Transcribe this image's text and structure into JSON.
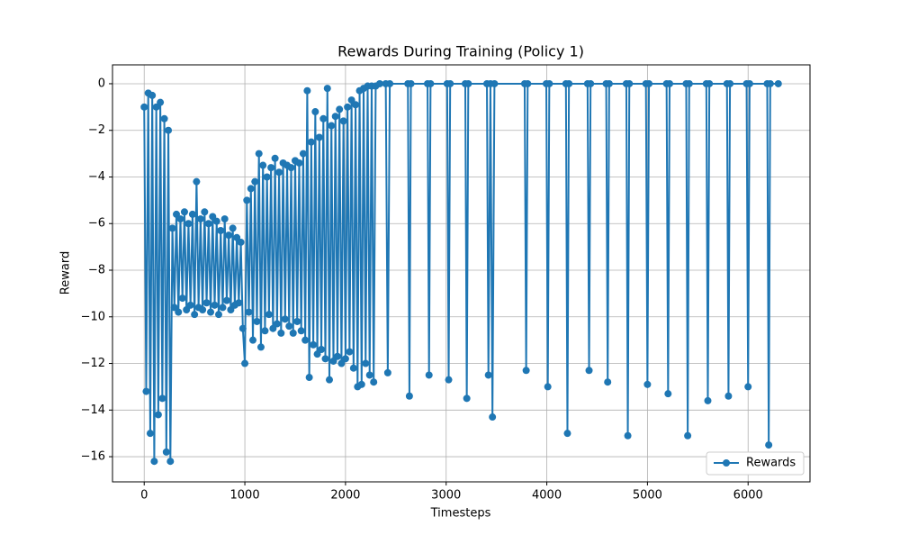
{
  "chart_data": {
    "type": "line",
    "title": "Rewards During Training (Policy 1)",
    "x_label": "Timesteps",
    "y_label": "Reward",
    "x": [
      0,
      20,
      40,
      60,
      80,
      100,
      120,
      140,
      160,
      180,
      200,
      220,
      240,
      260,
      280,
      300,
      320,
      340,
      360,
      380,
      400,
      420,
      440,
      460,
      480,
      500,
      520,
      540,
      560,
      580,
      600,
      620,
      640,
      660,
      680,
      700,
      720,
      740,
      760,
      780,
      800,
      820,
      840,
      860,
      880,
      900,
      920,
      940,
      960,
      980,
      1000,
      1020,
      1040,
      1060,
      1080,
      1100,
      1120,
      1140,
      1160,
      1180,
      1200,
      1220,
      1240,
      1260,
      1280,
      1300,
      1320,
      1340,
      1360,
      1380,
      1400,
      1420,
      1440,
      1460,
      1480,
      1500,
      1520,
      1540,
      1560,
      1580,
      1600,
      1620,
      1640,
      1660,
      1680,
      1700,
      1720,
      1740,
      1760,
      1780,
      1800,
      1820,
      1840,
      1860,
      1880,
      1900,
      1920,
      1940,
      1960,
      1980,
      2000,
      2020,
      2040,
      2060,
      2080,
      2100,
      2120,
      2140,
      2160,
      2180,
      2200,
      2220,
      2240,
      2260,
      2280,
      2300,
      2340,
      2400,
      2420,
      2440,
      2620,
      2635,
      2650,
      2815,
      2830,
      2845,
      3010,
      3025,
      3040,
      3190,
      3205,
      3220,
      3405,
      3420,
      3440,
      3460,
      3480,
      3780,
      3795,
      3810,
      3995,
      4010,
      4025,
      4190,
      4205,
      4220,
      4405,
      4420,
      4435,
      4590,
      4605,
      4620,
      4790,
      4805,
      4820,
      4985,
      5000,
      5015,
      5190,
      5205,
      5220,
      5385,
      5400,
      5415,
      5585,
      5600,
      5615,
      5790,
      5805,
      5820,
      5985,
      6000,
      6015,
      6190,
      6205,
      6220,
      6300
    ],
    "series": [
      {
        "name": "Rewards",
        "color": "#1f77b4",
        "values": [
          -1,
          -13.2,
          -0.4,
          -15,
          -0.5,
          -16.2,
          -1,
          -14.2,
          -0.8,
          -13.5,
          -1.5,
          -15.8,
          -2,
          -16.2,
          -6.2,
          -9.6,
          -5.6,
          -9.8,
          -5.8,
          -9.2,
          -5.5,
          -9.7,
          -6,
          -9.5,
          -5.6,
          -9.9,
          -4.2,
          -9.6,
          -5.8,
          -9.7,
          -5.5,
          -9.4,
          -6,
          -9.8,
          -5.7,
          -9.5,
          -5.9,
          -9.9,
          -6.3,
          -9.6,
          -5.8,
          -9.3,
          -6.5,
          -9.7,
          -6.2,
          -9.5,
          -6.6,
          -9.4,
          -6.8,
          -10.5,
          -12,
          -5,
          -9.8,
          -4.5,
          -11,
          -4.2,
          -10.2,
          -3,
          -11.3,
          -3.5,
          -10.6,
          -4,
          -9.9,
          -3.6,
          -10.5,
          -3.2,
          -10.3,
          -3.8,
          -10.7,
          -3.4,
          -10.1,
          -3.5,
          -10.4,
          -3.6,
          -10.7,
          -3.3,
          -10.2,
          -3.4,
          -10.6,
          -3,
          -11,
          -0.3,
          -12.6,
          -2.5,
          -11.2,
          -1.2,
          -11.6,
          -2.3,
          -11.4,
          -1.5,
          -11.8,
          -0.2,
          -12.7,
          -1.8,
          -11.9,
          -1.4,
          -11.7,
          -1.1,
          -12,
          -1.6,
          -11.8,
          -1,
          -11.5,
          -0.7,
          -12.2,
          -0.9,
          -13,
          -0.3,
          -12.9,
          -0.2,
          -12,
          -0.1,
          -12.5,
          -0.1,
          -12.8,
          -0.1,
          0,
          0,
          -12.4,
          0,
          0,
          -13.4,
          0,
          0,
          -12.5,
          0,
          0,
          -12.7,
          0,
          0,
          -13.5,
          0,
          0,
          -12.5,
          0,
          -14.3,
          0,
          0,
          -12.3,
          0,
          0,
          -13,
          0,
          0,
          -15,
          0,
          0,
          -12.3,
          0,
          0,
          -12.8,
          0,
          0,
          -15.1,
          0,
          0,
          -12.9,
          0,
          0,
          -13.3,
          0,
          0,
          -15.1,
          0,
          0,
          -13.6,
          0,
          0,
          -13.4,
          0,
          0,
          -13,
          0,
          0,
          -15.5,
          0,
          0
        ]
      }
    ],
    "xlim": [
      -315,
      6615
    ],
    "ylim": [
      -17.08,
      0.81
    ],
    "xticks": [
      0,
      1000,
      2000,
      3000,
      4000,
      5000,
      6000
    ],
    "yticks": [
      0,
      {
        "value": -2,
        "label": "−2"
      },
      {
        "value": -4,
        "label": "−4"
      },
      {
        "value": -6,
        "label": "−6"
      },
      {
        "value": -8,
        "label": "−8"
      },
      {
        "value": -10,
        "label": "−10"
      },
      {
        "value": -12,
        "label": "−12"
      },
      {
        "value": -14,
        "label": "−14"
      },
      {
        "value": -16,
        "label": "−16"
      }
    ],
    "grid": true,
    "legend": "lower right"
  }
}
